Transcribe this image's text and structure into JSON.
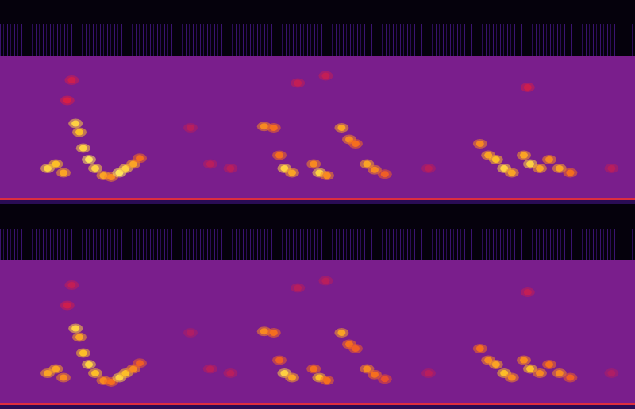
{
  "chart_data": [
    {
      "type": "spectrogram",
      "tick_labels": false,
      "xlim": [
        0,
        100
      ],
      "ylim": [
        0,
        100
      ],
      "zlim": [
        0,
        1
      ],
      "x": [
        7.5,
        8.8,
        10,
        11.9,
        12.5,
        13.1,
        14,
        15,
        16.3,
        17.5,
        18.8,
        19.8,
        21,
        22,
        10.6,
        11.3,
        30,
        33.1,
        36.3,
        41.6,
        43.1,
        44,
        44.8,
        46,
        49.4,
        50.3,
        51.5,
        53.8,
        55,
        56,
        57.8,
        59,
        60.6,
        67.5,
        46.9,
        51.3,
        75.6,
        76.9,
        78.1,
        79.4,
        80.6,
        82.5,
        83.5,
        85,
        86.5,
        88.1,
        89.8,
        83.1,
        96.3
      ],
      "y": [
        22,
        25,
        19,
        53,
        47,
        36,
        28,
        22,
        17,
        16,
        19,
        22,
        25,
        29,
        69,
        83,
        50,
        25,
        22,
        51,
        50,
        31,
        22,
        19,
        25,
        19,
        17,
        50,
        42,
        39,
        25,
        21,
        18,
        22,
        81,
        86,
        39,
        31,
        28,
        22,
        19,
        31,
        25,
        22,
        28,
        22,
        19,
        78,
        22
      ],
      "intensity": [
        0.9,
        0.85,
        0.8,
        0.9,
        0.85,
        0.9,
        0.95,
        0.9,
        0.8,
        0.75,
        0.95,
        0.9,
        0.8,
        0.7,
        0.45,
        0.4,
        0.3,
        0.3,
        0.3,
        0.75,
        0.7,
        0.7,
        0.9,
        0.8,
        0.75,
        0.9,
        0.75,
        0.8,
        0.75,
        0.7,
        0.8,
        0.75,
        0.65,
        0.3,
        0.35,
        0.35,
        0.75,
        0.8,
        0.85,
        0.9,
        0.8,
        0.8,
        0.9,
        0.8,
        0.75,
        0.8,
        0.7,
        0.4,
        0.3
      ]
    },
    {
      "type": "spectrogram",
      "tick_labels": false,
      "xlim": [
        0,
        100
      ],
      "ylim": [
        0,
        100
      ],
      "zlim": [
        0,
        1
      ],
      "x": [
        7.5,
        8.8,
        10,
        11.9,
        12.5,
        13.1,
        14,
        15,
        16.3,
        17.5,
        18.8,
        19.8,
        21,
        22,
        10.6,
        11.3,
        30,
        33.1,
        36.3,
        41.6,
        43.1,
        44,
        44.8,
        46,
        49.4,
        50.3,
        51.5,
        53.8,
        55,
        56,
        57.8,
        59,
        60.6,
        67.5,
        46.9,
        51.3,
        75.6,
        76.9,
        78.1,
        79.4,
        80.6,
        82.5,
        83.5,
        85,
        86.5,
        88.1,
        89.8,
        83.1,
        96.3
      ],
      "y": [
        22,
        25,
        19,
        53,
        47,
        36,
        28,
        22,
        17,
        16,
        19,
        22,
        25,
        29,
        69,
        83,
        50,
        25,
        22,
        51,
        50,
        31,
        22,
        19,
        25,
        19,
        17,
        50,
        42,
        39,
        25,
        21,
        18,
        22,
        81,
        86,
        39,
        31,
        28,
        22,
        19,
        31,
        25,
        22,
        28,
        22,
        19,
        78,
        22
      ],
      "intensity": [
        0.8,
        0.8,
        0.75,
        0.9,
        0.8,
        0.85,
        0.9,
        0.85,
        0.75,
        0.7,
        0.9,
        0.85,
        0.75,
        0.65,
        0.4,
        0.35,
        0.25,
        0.3,
        0.3,
        0.75,
        0.7,
        0.65,
        0.9,
        0.8,
        0.7,
        0.85,
        0.7,
        0.8,
        0.7,
        0.65,
        0.75,
        0.7,
        0.6,
        0.3,
        0.3,
        0.3,
        0.7,
        0.75,
        0.8,
        0.85,
        0.75,
        0.75,
        0.85,
        0.75,
        0.7,
        0.75,
        0.65,
        0.35,
        0.25
      ]
    }
  ]
}
